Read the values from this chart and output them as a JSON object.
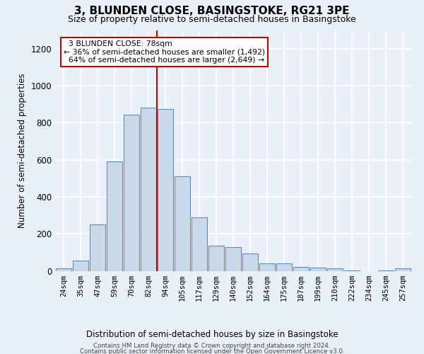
{
  "title": "3, BLUNDEN CLOSE, BASINGSTOKE, RG21 3PE",
  "subtitle": "Size of property relative to semi-detached houses in Basingstoke",
  "xlabel": "Distribution of semi-detached houses by size in Basingstoke",
  "ylabel": "Number of semi-detached properties",
  "footnote1": "Contains HM Land Registry data © Crown copyright and database right 2024.",
  "footnote2": "Contains public sector information licensed under the Open Government Licence v3.0.",
  "categories": [
    "24sqm",
    "35sqm",
    "47sqm",
    "59sqm",
    "70sqm",
    "82sqm",
    "94sqm",
    "105sqm",
    "117sqm",
    "129sqm",
    "140sqm",
    "152sqm",
    "164sqm",
    "175sqm",
    "187sqm",
    "199sqm",
    "210sqm",
    "222sqm",
    "234sqm",
    "245sqm",
    "257sqm"
  ],
  "values": [
    15,
    55,
    250,
    590,
    845,
    880,
    875,
    510,
    290,
    135,
    130,
    95,
    40,
    40,
    20,
    18,
    12,
    2,
    0,
    2,
    12
  ],
  "bar_color": "#c9d9ec",
  "bar_edge_color": "#5b8db8",
  "background_color": "#eaf0f8",
  "grid_color": "#ffffff",
  "property_label": "3 BLUNDEN CLOSE: 78sqm",
  "pct_smaller": 36,
  "pct_larger": 64,
  "count_smaller": 1492,
  "count_larger": 2649,
  "vline_color": "#cc0000",
  "vline_position": 5.5,
  "annotation_box_color": "#ffffff",
  "annotation_box_edge": "#cc0000",
  "ylim": [
    0,
    1300
  ],
  "yticks": [
    0,
    200,
    400,
    600,
    800,
    1000,
    1200
  ]
}
